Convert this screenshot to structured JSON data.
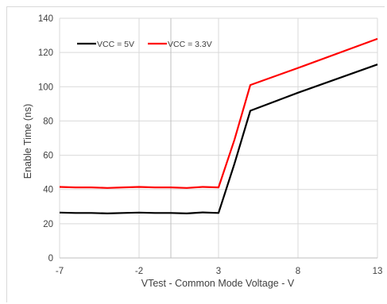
{
  "chart_data": {
    "type": "line",
    "title": "",
    "xlabel": "VTest - Common Mode Voltage - V",
    "ylabel": "Enable Time (ns)",
    "xlim": [
      -7,
      13
    ],
    "ylim": [
      0,
      140
    ],
    "xticks": [
      -7,
      -2,
      3,
      8,
      13
    ],
    "yticks": [
      0,
      20,
      40,
      60,
      80,
      100,
      120,
      140
    ],
    "grid": "both",
    "legend_position": "top-left",
    "series": [
      {
        "name": "VCC = 5V",
        "color": "#000000",
        "x": [
          -7,
          -6,
          -5,
          -4,
          -3,
          -2,
          -1,
          0,
          1,
          2,
          3,
          4,
          5,
          7,
          8,
          13
        ],
        "y": [
          26.5,
          26.3,
          26.3,
          26.0,
          26.3,
          26.5,
          26.3,
          26.3,
          26.0,
          26.6,
          26.3,
          55.0,
          86.0,
          93.0,
          96.5,
          113.0
        ]
      },
      {
        "name": "VCC = 3.3V",
        "color": "#ff0000",
        "x": [
          -7,
          -6,
          -5,
          -4,
          -3,
          -2,
          -1,
          0,
          1,
          2,
          3,
          4,
          5,
          8,
          13
        ],
        "y": [
          41.5,
          41.2,
          41.2,
          40.9,
          41.2,
          41.5,
          41.2,
          41.2,
          40.9,
          41.5,
          41.2,
          69.0,
          101.0,
          111.0,
          128.0
        ]
      }
    ]
  }
}
